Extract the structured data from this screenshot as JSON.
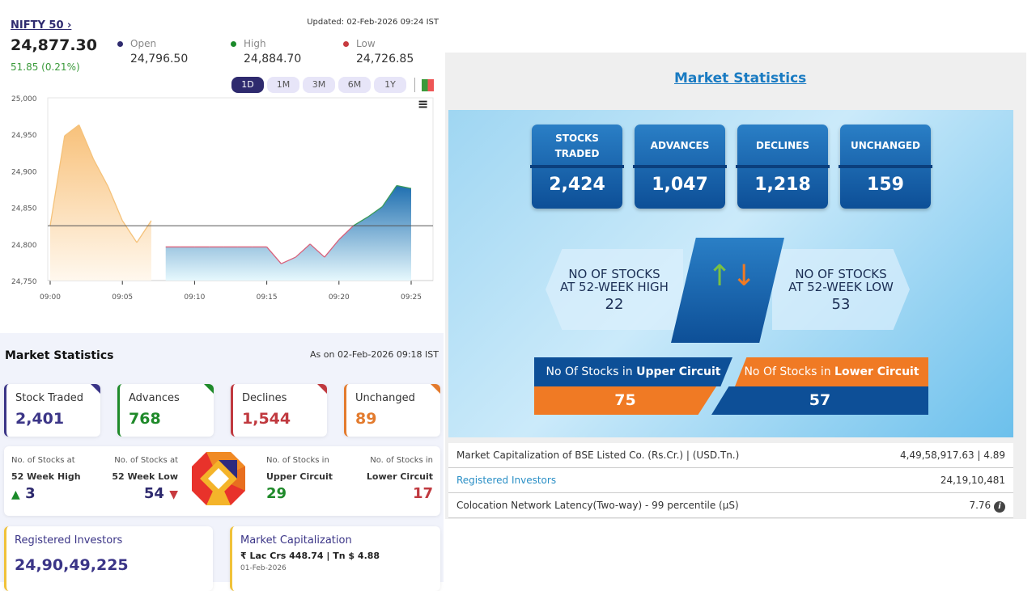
{
  "index": {
    "name": "NIFTY 50",
    "arrow": "›",
    "updated": "Updated: 02-Feb-2026 09:24 IST",
    "price": "24,877.30",
    "change": "51.85 (0.21%)",
    "open_label": "Open",
    "open": "24,796.50",
    "high_label": "High",
    "high": "24,884.70",
    "low_label": "Low",
    "low": "24,726.85",
    "ranges": [
      "1D",
      "1M",
      "3M",
      "6M",
      "1Y"
    ],
    "active_range": "1D"
  },
  "chart_data": {
    "type": "area",
    "x": [
      "09:00",
      "09:01",
      "09:02",
      "09:03",
      "09:04",
      "09:05",
      "09:06",
      "09:07",
      "09:08",
      "09:09",
      "09:10",
      "09:11",
      "09:12",
      "09:13",
      "09:14",
      "09:15",
      "09:16",
      "09:17",
      "09:18",
      "09:19",
      "09:20",
      "09:21",
      "09:22",
      "09:23",
      "09:24",
      "09:25"
    ],
    "series": [
      {
        "values": [
          24825,
          24948,
          24963,
          24916,
          24879,
          24832,
          24802,
          24832,
          null,
          null,
          null,
          null,
          null,
          null,
          null,
          null,
          null,
          null,
          null,
          null,
          null,
          null,
          null,
          null,
          null,
          null
        ],
        "color": "#f5c27a"
      },
      {
        "values": [
          null,
          null,
          null,
          null,
          null,
          null,
          null,
          null,
          24796,
          24796,
          24796,
          24796,
          24796,
          24796,
          24796,
          24796,
          24773,
          24782,
          24800,
          24782,
          24806,
          24825,
          24837,
          24851,
          24880,
          24876
        ],
        "color": "#2f8fc6"
      }
    ],
    "baseline": 24825,
    "ylim": [
      24750,
      25000
    ],
    "yticks": [
      "25,000",
      "24,950",
      "24,900",
      "24,850",
      "24,800",
      "24,750"
    ],
    "xticks": [
      "09:00",
      "09:05",
      "09:10",
      "09:15",
      "09:20",
      "09:25"
    ],
    "grid": false
  },
  "stats": {
    "title": "Market Statistics",
    "as_on": "As on 02-Feb-2026 09:18 IST",
    "cards": [
      {
        "label": "Stock Traded",
        "value": "2,401",
        "color": "#3b3587"
      },
      {
        "label": "Advances",
        "value": "768",
        "color": "#1f8a2a"
      },
      {
        "label": "Declines",
        "value": "1,544",
        "color": "#c0393f"
      },
      {
        "label": "Unchanged",
        "value": "89",
        "color": "#e37b2e"
      }
    ],
    "w52_high": {
      "l1": "No. of Stocks at",
      "l2": "52 Week High",
      "value": "3"
    },
    "w52_low": {
      "l1": "No. of Stocks at",
      "l2": "52 Week Low",
      "value": "54"
    },
    "upper": {
      "l1": "No. of Stocks in",
      "l2": "Upper Circuit",
      "value": "29"
    },
    "lower": {
      "l1": "No. of Stocks in",
      "l2": "Lower Circuit",
      "value": "17"
    },
    "investors": {
      "label": "Registered Investors",
      "value": "24,90,49,225"
    },
    "mcap": {
      "label": "Market Capitalization",
      "value": "₹ Lac Crs 448.74 | Tn $ 4.88",
      "date": "01-Feb-2026"
    }
  },
  "bse": {
    "title": "Market Statistics",
    "tiles": [
      {
        "label": "STOCKS TRADED",
        "value": "2,424"
      },
      {
        "label": "ADVANCES",
        "value": "1,047"
      },
      {
        "label": "DECLINES",
        "value": "1,218"
      },
      {
        "label": "UNCHANGED",
        "value": "159"
      }
    ],
    "high52": {
      "label": "NO OF STOCKS AT 52-WEEK HIGH",
      "value": "22"
    },
    "low52": {
      "label": "NO OF STOCKS AT 52-WEEK LOW",
      "value": "53"
    },
    "upper": {
      "pre": "No Of Stocks in ",
      "bold": "Upper Circuit",
      "value": "75"
    },
    "lower": {
      "pre": "No Of Stocks in ",
      "bold": "Lower Circuit",
      "value": "57"
    },
    "rows": [
      {
        "label": "Market Capitalization of BSE Listed Co. (Rs.Cr.) | (USD.Tn.)",
        "value": "4,49,58,917.63 | 4.89"
      },
      {
        "label": "Registered Investors",
        "value": "24,19,10,481"
      },
      {
        "label": "Colocation Network Latency(Two-way) - 99 percentile (µS)",
        "value": "7.76"
      }
    ]
  }
}
